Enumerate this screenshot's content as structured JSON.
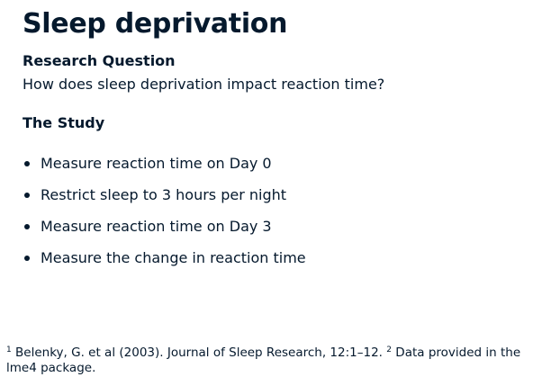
{
  "title": "Sleep deprivation",
  "research_question": {
    "heading": "Research Question",
    "text": "How does sleep deprivation impact reaction time?"
  },
  "study": {
    "heading": "The Study",
    "steps": [
      "Measure reaction time on Day 0",
      "Restrict sleep to 3 hours per night",
      "Measure reaction time on Day 3",
      "Measure the change in reaction time"
    ]
  },
  "footnote": {
    "ref1_marker": "1",
    "ref1_text": "Belenky, G. et al (2003). Journal of Sleep Research, 12:1–12.",
    "ref2_marker": "2",
    "ref2_text": "Data provided in the lme4 package."
  }
}
